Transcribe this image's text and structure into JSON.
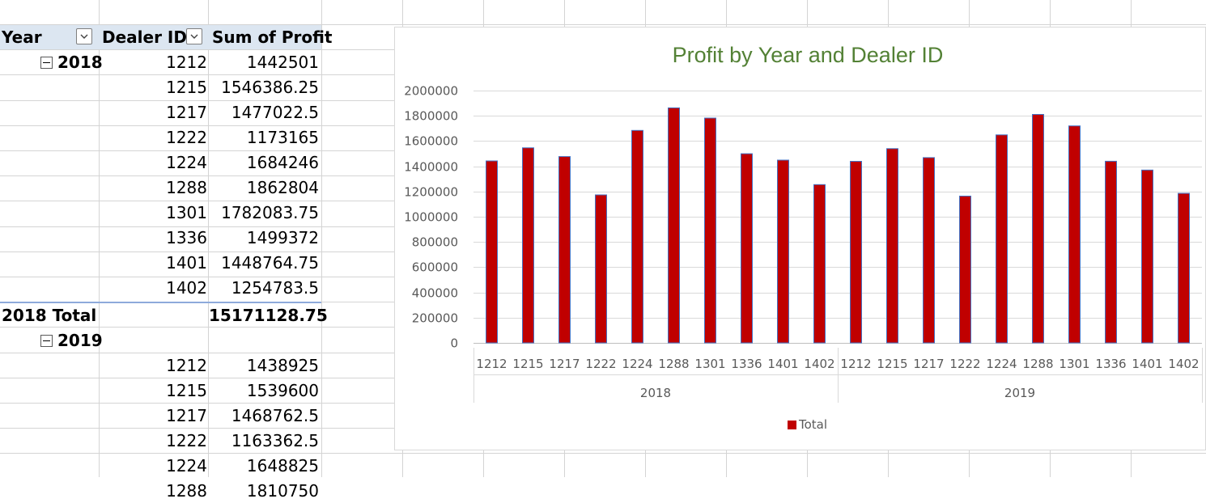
{
  "pivot": {
    "headers": {
      "year": "Year",
      "dealer_id": "Dealer ID",
      "sum_profit": "Sum of Profit"
    },
    "groups": [
      {
        "year": "2018",
        "rows": [
          {
            "dealer": "1212",
            "profit": "1442501"
          },
          {
            "dealer": "1215",
            "profit": "1546386.25"
          },
          {
            "dealer": "1217",
            "profit": "1477022.5"
          },
          {
            "dealer": "1222",
            "profit": "1173165"
          },
          {
            "dealer": "1224",
            "profit": "1684246"
          },
          {
            "dealer": "1288",
            "profit": "1862804"
          },
          {
            "dealer": "1301",
            "profit": "1782083.75"
          },
          {
            "dealer": "1336",
            "profit": "1499372"
          },
          {
            "dealer": "1401",
            "profit": "1448764.75"
          },
          {
            "dealer": "1402",
            "profit": "1254783.5"
          }
        ],
        "total_label": "2018 Total",
        "total_value": "15171128.75"
      },
      {
        "year": "2019",
        "rows": [
          {
            "dealer": "1212",
            "profit": "1438925"
          },
          {
            "dealer": "1215",
            "profit": "1539600"
          },
          {
            "dealer": "1217",
            "profit": "1468762.5"
          },
          {
            "dealer": "1222",
            "profit": "1163362.5"
          },
          {
            "dealer": "1224",
            "profit": "1648825"
          },
          {
            "dealer": "1288",
            "profit": "1810750"
          }
        ]
      }
    ]
  },
  "chart_data": {
    "type": "bar",
    "title": "Profit by Year and Dealer ID",
    "groups": [
      "2018",
      "2019"
    ],
    "categories": [
      "1212",
      "1215",
      "1217",
      "1222",
      "1224",
      "1288",
      "1301",
      "1336",
      "1401",
      "1402"
    ],
    "series": [
      {
        "name": "Total",
        "color": "#c00000",
        "values": [
          [
            1442501,
            1546386.25,
            1477022.5,
            1173165,
            1684246,
            1862804,
            1782083.75,
            1499372,
            1448764.75,
            1254783.5
          ],
          [
            1438925,
            1539600,
            1468762.5,
            1163362.5,
            1648825,
            1810750,
            1720000,
            1440000,
            1370000,
            1185000
          ]
        ]
      }
    ],
    "yticks": [
      "2000000",
      "1800000",
      "1600000",
      "1400000",
      "1200000",
      "1000000",
      "800000",
      "600000",
      "400000",
      "200000",
      "0"
    ],
    "ylim": [
      0,
      2000000
    ],
    "grid": true,
    "legend": "bottom",
    "title_color": "#538135",
    "bar_stroke": "#4472c4"
  }
}
